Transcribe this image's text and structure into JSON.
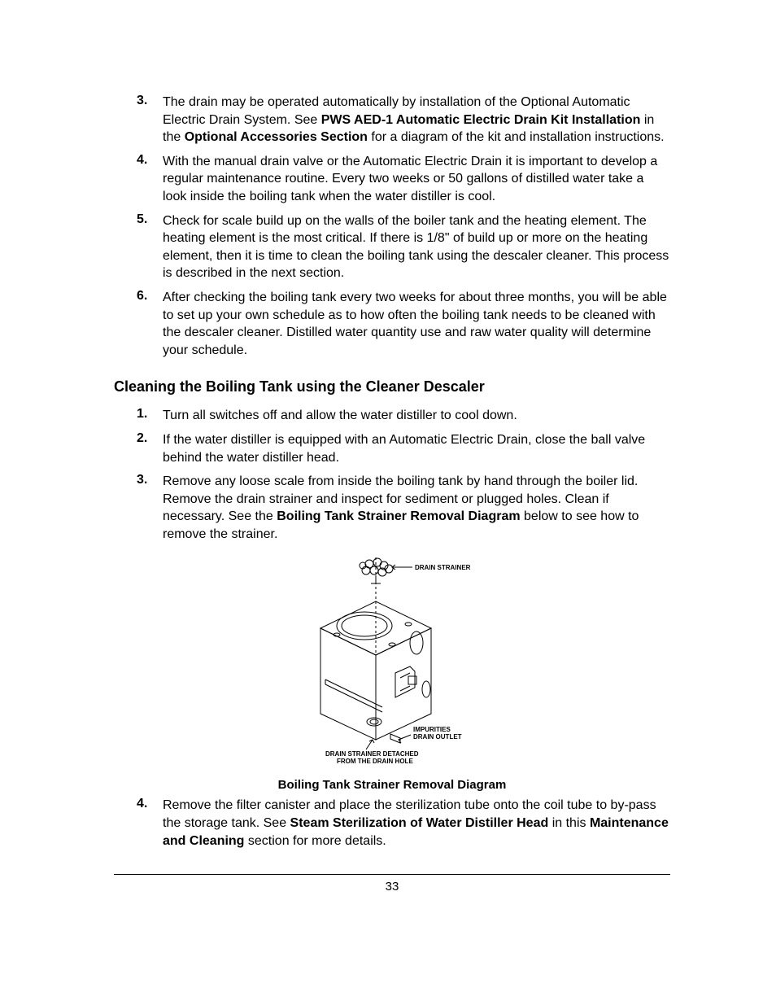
{
  "list1": [
    {
      "num": "3.",
      "parts": [
        {
          "t": "The drain may be operated automatically by installation of the Optional Automatic Electric Drain System. See ",
          "b": false
        },
        {
          "t": "PWS AED-1 Automatic Electric Drain Kit Installation",
          "b": true
        },
        {
          "t": " in the ",
          "b": false
        },
        {
          "t": "Optional Accessories Section",
          "b": true
        },
        {
          "t": " for a diagram of the kit and installation instructions.",
          "b": false
        }
      ]
    },
    {
      "num": "4.",
      "parts": [
        {
          "t": "With the manual drain valve or the Automatic Electric Drain it is important to develop a regular maintenance routine.  Every two weeks or 50 gallons of distilled water take a look inside the boiling tank when the water distiller is cool.",
          "b": false
        }
      ]
    },
    {
      "num": "5.",
      "parts": [
        {
          "t": "Check for scale build up on the walls of the boiler tank and the heating element.  The heating element is the most critical.  If there is 1/8\" of build up or more on the heating element, then it is time to clean the boiling tank using the descaler cleaner.  This process is described in the next section.",
          "b": false
        }
      ]
    },
    {
      "num": "6.",
      "parts": [
        {
          "t": "After checking the boiling tank every two weeks for about three months, you will be able to set up your own schedule as to how often the boiling tank needs to be cleaned with the descaler cleaner.  Distilled water quantity use and raw water quality will determine your schedule.",
          "b": false
        }
      ]
    }
  ],
  "section_heading": "Cleaning the Boiling Tank using the Cleaner Descaler",
  "list2": [
    {
      "num": "1.",
      "parts": [
        {
          "t": "Turn all switches off and allow the water distiller to cool down.",
          "b": false
        }
      ]
    },
    {
      "num": "2.",
      "parts": [
        {
          "t": "If the water distiller is equipped with an Automatic Electric Drain, close the ball valve behind the water distiller head.",
          "b": false
        }
      ]
    },
    {
      "num": "3.",
      "parts": [
        {
          "t": "Remove any loose scale from inside the boiling tank by hand through the boiler lid.  Remove the drain strainer and inspect for sediment or plugged holes.  Clean if necessary.  See the ",
          "b": false
        },
        {
          "t": "Boiling Tank Strainer Removal Diagram",
          "b": true
        },
        {
          "t": " below to see how to remove the strainer.",
          "b": false
        }
      ]
    }
  ],
  "diagram": {
    "caption": "Boiling Tank Strainer Removal Diagram",
    "label_strainer": "DRAIN STRAINER",
    "label_impurities": "IMPURITIES",
    "label_outlet": "DRAIN OUTLET",
    "label_detached1": "DRAIN STRAINER DETACHED",
    "label_detached2": "FROM THE DRAIN HOLE",
    "stroke": "#000000",
    "fill": "#ffffff"
  },
  "list3": [
    {
      "num": "4.",
      "parts": [
        {
          "t": "Remove the filter canister and place the sterilization tube onto the coil tube to by-pass the storage tank.  See ",
          "b": false
        },
        {
          "t": "Steam Sterilization of Water Distiller Head",
          "b": true
        },
        {
          "t": " in this ",
          "b": false
        },
        {
          "t": "Maintenance and Cleaning",
          "b": true
        },
        {
          "t": " section for more details.",
          "b": false
        }
      ]
    }
  ],
  "page_number": "33"
}
